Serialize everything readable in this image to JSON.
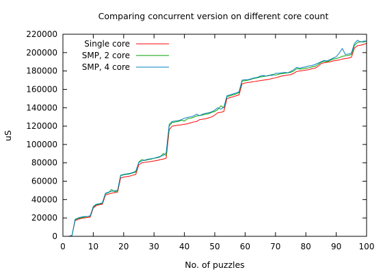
{
  "chart_data": {
    "type": "line",
    "title": "Comparing concurrent version on different core count",
    "xlabel": "No. of puzzles",
    "ylabel": "uS",
    "xlim": [
      0,
      100
    ],
    "ylim": [
      0,
      220000
    ],
    "x_ticks": [
      0,
      10,
      20,
      30,
      40,
      50,
      60,
      70,
      80,
      90,
      100
    ],
    "y_ticks": [
      0,
      20000,
      40000,
      60000,
      80000,
      100000,
      120000,
      140000,
      160000,
      180000,
      200000,
      220000
    ],
    "legend_position": "top-left",
    "grid": false,
    "series": [
      {
        "name": "Single core",
        "color": "#ff0000",
        "points": [
          [
            1,
            0
          ],
          [
            2,
            0
          ],
          [
            3,
            1000
          ],
          [
            4,
            17000
          ],
          [
            5,
            18500
          ],
          [
            6,
            19500
          ],
          [
            7,
            20000
          ],
          [
            8,
            20500
          ],
          [
            9,
            21000
          ],
          [
            10,
            31000
          ],
          [
            11,
            33500
          ],
          [
            12,
            34500
          ],
          [
            13,
            35000
          ],
          [
            14,
            45000
          ],
          [
            15,
            46000
          ],
          [
            16,
            47000
          ],
          [
            17,
            47500
          ],
          [
            18,
            48000
          ],
          [
            19,
            63500
          ],
          [
            20,
            64500
          ],
          [
            21,
            65000
          ],
          [
            22,
            65500
          ],
          [
            23,
            66500
          ],
          [
            24,
            67500
          ],
          [
            25,
            78000
          ],
          [
            26,
            80000
          ],
          [
            27,
            80500
          ],
          [
            28,
            81000
          ],
          [
            29,
            81500
          ],
          [
            30,
            82000
          ],
          [
            31,
            82500
          ],
          [
            32,
            83500
          ],
          [
            33,
            84000
          ],
          [
            34,
            85000
          ],
          [
            35,
            116000
          ],
          [
            36,
            120000
          ],
          [
            37,
            120500
          ],
          [
            38,
            121000
          ],
          [
            39,
            121500
          ],
          [
            40,
            122000
          ],
          [
            41,
            122500
          ],
          [
            42,
            123500
          ],
          [
            43,
            124500
          ],
          [
            44,
            125000
          ],
          [
            45,
            127000
          ],
          [
            46,
            127500
          ],
          [
            47,
            128000
          ],
          [
            48,
            129000
          ],
          [
            49,
            130000
          ],
          [
            50,
            132000
          ],
          [
            51,
            134500
          ],
          [
            52,
            135000
          ],
          [
            53,
            136000
          ],
          [
            54,
            150000
          ],
          [
            55,
            151000
          ],
          [
            56,
            152000
          ],
          [
            57,
            153000
          ],
          [
            58,
            154000
          ],
          [
            59,
            166000
          ],
          [
            60,
            167000
          ],
          [
            61,
            167500
          ],
          [
            62,
            168000
          ],
          [
            63,
            168500
          ],
          [
            64,
            169000
          ],
          [
            65,
            169500
          ],
          [
            66,
            170000
          ],
          [
            67,
            170500
          ],
          [
            68,
            171000
          ],
          [
            69,
            172000
          ],
          [
            70,
            172500
          ],
          [
            71,
            173500
          ],
          [
            72,
            174500
          ],
          [
            73,
            175000
          ],
          [
            74,
            175500
          ],
          [
            75,
            176000
          ],
          [
            76,
            177500
          ],
          [
            77,
            179500
          ],
          [
            78,
            180000
          ],
          [
            79,
            180500
          ],
          [
            80,
            181000
          ],
          [
            81,
            181500
          ],
          [
            82,
            182500
          ],
          [
            83,
            183000
          ],
          [
            84,
            185000
          ],
          [
            85,
            188000
          ],
          [
            86,
            189000
          ],
          [
            87,
            189500
          ],
          [
            88,
            190000
          ],
          [
            89,
            191000
          ],
          [
            90,
            191500
          ],
          [
            91,
            192000
          ],
          [
            92,
            193000
          ],
          [
            93,
            193500
          ],
          [
            94,
            194000
          ],
          [
            95,
            195000
          ],
          [
            96,
            205000
          ],
          [
            97,
            207500
          ],
          [
            98,
            208000
          ],
          [
            99,
            209000
          ],
          [
            100,
            210000
          ]
        ]
      },
      {
        "name": "SMP, 2 core",
        "color": "#00a000",
        "points": [
          [
            1,
            0
          ],
          [
            2,
            0
          ],
          [
            3,
            1000
          ],
          [
            4,
            18000
          ],
          [
            5,
            19500
          ],
          [
            6,
            20000
          ],
          [
            7,
            21000
          ],
          [
            8,
            21500
          ],
          [
            9,
            22000
          ],
          [
            10,
            32000
          ],
          [
            11,
            34500
          ],
          [
            12,
            35000
          ],
          [
            13,
            36000
          ],
          [
            14,
            46500
          ],
          [
            15,
            47500
          ],
          [
            16,
            51000
          ],
          [
            17,
            48500
          ],
          [
            18,
            49500
          ],
          [
            19,
            66000
          ],
          [
            20,
            67000
          ],
          [
            21,
            67500
          ],
          [
            22,
            68000
          ],
          [
            23,
            69000
          ],
          [
            24,
            70000
          ],
          [
            25,
            81000
          ],
          [
            26,
            83500
          ],
          [
            27,
            82500
          ],
          [
            28,
            83500
          ],
          [
            29,
            84000
          ],
          [
            30,
            85000
          ],
          [
            31,
            85500
          ],
          [
            32,
            86500
          ],
          [
            33,
            90000
          ],
          [
            34,
            88000
          ],
          [
            35,
            120000
          ],
          [
            36,
            124000
          ],
          [
            37,
            124500
          ],
          [
            38,
            125000
          ],
          [
            39,
            126500
          ],
          [
            40,
            125500
          ],
          [
            41,
            128000
          ],
          [
            42,
            128500
          ],
          [
            43,
            129500
          ],
          [
            44,
            131000
          ],
          [
            45,
            131500
          ],
          [
            46,
            132000
          ],
          [
            47,
            133000
          ],
          [
            48,
            133500
          ],
          [
            49,
            135000
          ],
          [
            50,
            136000
          ],
          [
            51,
            138000
          ],
          [
            52,
            142000
          ],
          [
            53,
            140000
          ],
          [
            54,
            152000
          ],
          [
            55,
            153000
          ],
          [
            56,
            154000
          ],
          [
            57,
            155000
          ],
          [
            58,
            156500
          ],
          [
            59,
            169000
          ],
          [
            60,
            169500
          ],
          [
            61,
            170000
          ],
          [
            62,
            171000
          ],
          [
            63,
            172000
          ],
          [
            64,
            172500
          ],
          [
            65,
            173500
          ],
          [
            66,
            174000
          ],
          [
            67,
            174500
          ],
          [
            68,
            175000
          ],
          [
            69,
            176500
          ],
          [
            70,
            175500
          ],
          [
            71,
            176500
          ],
          [
            72,
            177000
          ],
          [
            73,
            177500
          ],
          [
            74,
            178000
          ],
          [
            75,
            178500
          ],
          [
            76,
            180000
          ],
          [
            77,
            182500
          ],
          [
            78,
            182000
          ],
          [
            79,
            182500
          ],
          [
            80,
            183000
          ],
          [
            81,
            183500
          ],
          [
            82,
            184500
          ],
          [
            83,
            185000
          ],
          [
            84,
            187000
          ],
          [
            85,
            189500
          ],
          [
            86,
            190500
          ],
          [
            87,
            190000
          ],
          [
            88,
            191500
          ],
          [
            89,
            193000
          ],
          [
            90,
            193500
          ],
          [
            91,
            194500
          ],
          [
            92,
            196000
          ],
          [
            93,
            196500
          ],
          [
            94,
            197000
          ],
          [
            95,
            198000
          ],
          [
            96,
            208000
          ],
          [
            97,
            211000
          ],
          [
            98,
            212000
          ],
          [
            99,
            211500
          ],
          [
            100,
            212500
          ]
        ]
      },
      {
        "name": "SMP, 4 core",
        "color": "#0080c0",
        "points": [
          [
            1,
            0
          ],
          [
            2,
            0
          ],
          [
            3,
            1000
          ],
          [
            4,
            18500
          ],
          [
            5,
            20000
          ],
          [
            6,
            21000
          ],
          [
            7,
            21500
          ],
          [
            8,
            21500
          ],
          [
            9,
            22500
          ],
          [
            10,
            32500
          ],
          [
            11,
            35000
          ],
          [
            12,
            35500
          ],
          [
            13,
            36500
          ],
          [
            14,
            47000
          ],
          [
            15,
            48000
          ],
          [
            16,
            49000
          ],
          [
            17,
            49500
          ],
          [
            18,
            50000
          ],
          [
            19,
            66500
          ],
          [
            20,
            67500
          ],
          [
            21,
            68000
          ],
          [
            22,
            68500
          ],
          [
            23,
            69500
          ],
          [
            24,
            71000
          ],
          [
            25,
            80500
          ],
          [
            26,
            82000
          ],
          [
            27,
            83000
          ],
          [
            28,
            84000
          ],
          [
            29,
            84500
          ],
          [
            30,
            85000
          ],
          [
            31,
            86000
          ],
          [
            32,
            87000
          ],
          [
            33,
            88000
          ],
          [
            34,
            91000
          ],
          [
            35,
            122000
          ],
          [
            36,
            125000
          ],
          [
            37,
            125500
          ],
          [
            38,
            126000
          ],
          [
            39,
            127000
          ],
          [
            40,
            128500
          ],
          [
            41,
            129500
          ],
          [
            42,
            130000
          ],
          [
            43,
            131000
          ],
          [
            44,
            133000
          ],
          [
            45,
            131500
          ],
          [
            46,
            133000
          ],
          [
            47,
            134000
          ],
          [
            48,
            134500
          ],
          [
            49,
            135500
          ],
          [
            50,
            137500
          ],
          [
            51,
            140000
          ],
          [
            52,
            138500
          ],
          [
            53,
            140500
          ],
          [
            54,
            153000
          ],
          [
            55,
            154000
          ],
          [
            56,
            155000
          ],
          [
            57,
            156000
          ],
          [
            58,
            157500
          ],
          [
            59,
            170000
          ],
          [
            60,
            170500
          ],
          [
            61,
            170500
          ],
          [
            62,
            171500
          ],
          [
            63,
            172500
          ],
          [
            64,
            173000
          ],
          [
            65,
            174500
          ],
          [
            66,
            175000
          ],
          [
            67,
            174500
          ],
          [
            68,
            175500
          ],
          [
            69,
            175000
          ],
          [
            70,
            177500
          ],
          [
            71,
            177500
          ],
          [
            72,
            178000
          ],
          [
            73,
            178500
          ],
          [
            74,
            178000
          ],
          [
            75,
            179500
          ],
          [
            76,
            181500
          ],
          [
            77,
            184000
          ],
          [
            78,
            183000
          ],
          [
            79,
            184000
          ],
          [
            80,
            184500
          ],
          [
            81,
            185500
          ],
          [
            82,
            186000
          ],
          [
            83,
            187000
          ],
          [
            84,
            188500
          ],
          [
            85,
            190000
          ],
          [
            86,
            191500
          ],
          [
            87,
            191000
          ],
          [
            88,
            192500
          ],
          [
            89,
            194000
          ],
          [
            90,
            195500
          ],
          [
            91,
            199500
          ],
          [
            92,
            204500
          ],
          [
            93,
            198000
          ],
          [
            94,
            198500
          ],
          [
            95,
            199500
          ],
          [
            96,
            210000
          ],
          [
            97,
            213500
          ],
          [
            98,
            211500
          ],
          [
            99,
            212500
          ],
          [
            100,
            212500
          ]
        ]
      }
    ]
  }
}
